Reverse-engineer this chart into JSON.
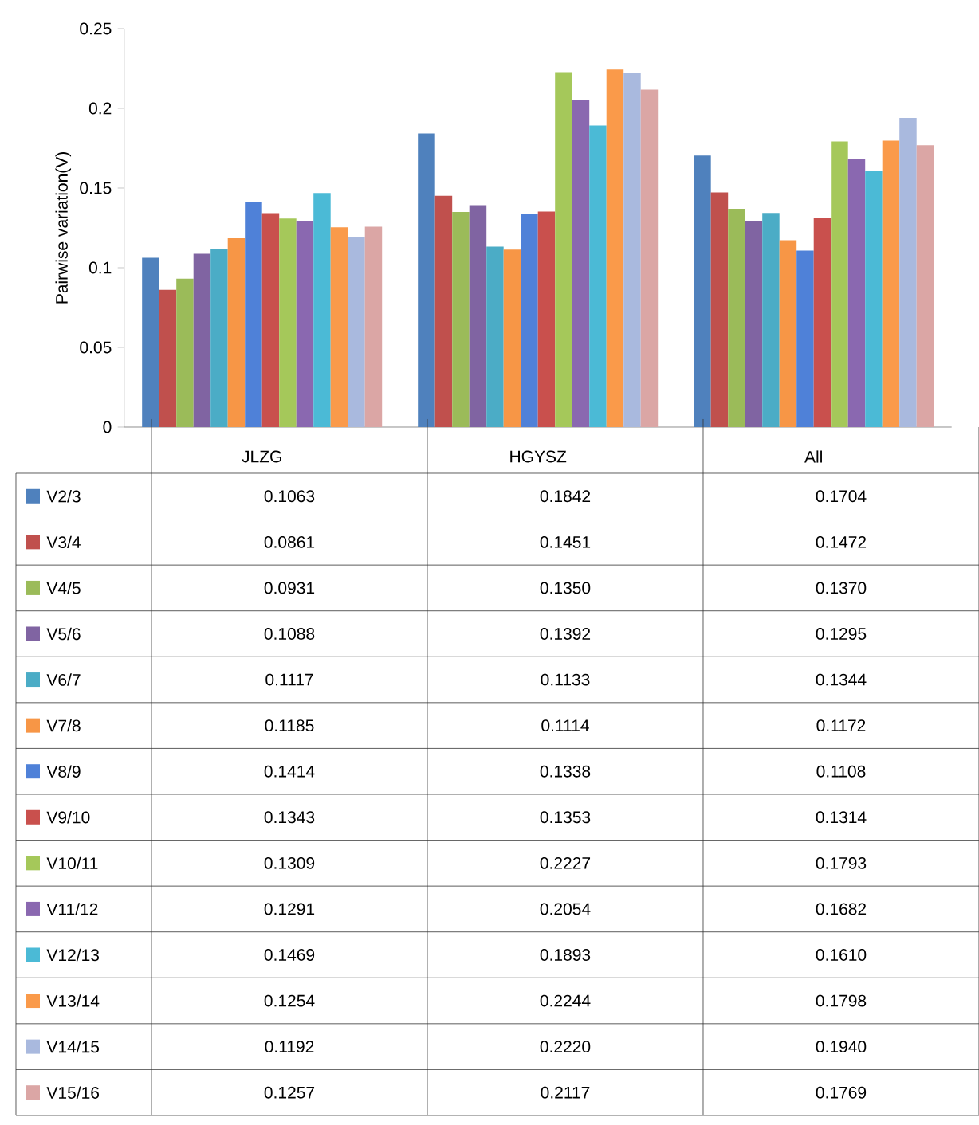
{
  "chart_data": {
    "type": "bar",
    "ylabel": "Pairwise variation(V)",
    "categories": [
      "JLZG",
      "HGYSZ",
      "All"
    ],
    "ylim": [
      0,
      0.25
    ],
    "yticks": [
      0,
      0.05,
      {
        "value": 0.1,
        "label": "0.1"
      },
      0.15,
      {
        "value": 0.2,
        "label": "0.2"
      },
      0.25
    ],
    "legend": "bottom",
    "series": [
      {
        "name": "V2/3",
        "color": "#4f81bd",
        "values": [
          0.1063,
          0.1842,
          0.1704
        ],
        "value_labels": [
          "0.1063",
          "0.1842",
          "0.1704"
        ]
      },
      {
        "name": "V3/4",
        "color": "#c0504d",
        "values": [
          0.0861,
          0.1451,
          0.1472
        ],
        "value_labels": [
          "0.0861",
          "0.1451",
          "0.1472"
        ]
      },
      {
        "name": "V4/5",
        "color": "#9bbb59",
        "values": [
          0.0931,
          0.135,
          0.137
        ],
        "value_labels": [
          "0.0931",
          "0.1350",
          "0.1370"
        ]
      },
      {
        "name": "V5/6",
        "color": "#8064a2",
        "values": [
          0.1088,
          0.1392,
          0.1295
        ],
        "value_labels": [
          "0.1088",
          "0.1392",
          "0.1295"
        ]
      },
      {
        "name": "V6/7",
        "color": "#4bacc6",
        "values": [
          0.1117,
          0.1133,
          0.1344
        ],
        "value_labels": [
          "0.1117",
          "0.1133",
          "0.1344"
        ]
      },
      {
        "name": "V7/8",
        "color": "#f79646",
        "values": [
          0.1185,
          0.1114,
          0.1172
        ],
        "value_labels": [
          "0.1185",
          "0.1114",
          "0.1172"
        ]
      },
      {
        "name": "V8/9",
        "color": "#4f81d8",
        "values": [
          0.1414,
          0.1338,
          0.1108
        ],
        "value_labels": [
          "0.1414",
          "0.1338",
          "0.1108"
        ]
      },
      {
        "name": "V9/10",
        "color": "#c9504d",
        "values": [
          0.1343,
          0.1353,
          0.1314
        ],
        "value_labels": [
          "0.1343",
          "0.1353",
          "0.1314"
        ]
      },
      {
        "name": "V10/11",
        "color": "#a5c85a",
        "values": [
          0.1309,
          0.2227,
          0.1793
        ],
        "value_labels": [
          "0.1309",
          "0.2227",
          "0.1793"
        ]
      },
      {
        "name": "V11/12",
        "color": "#8a68b0",
        "values": [
          0.1291,
          0.2054,
          0.1682
        ],
        "value_labels": [
          "0.1291",
          "0.2054",
          "0.1682"
        ]
      },
      {
        "name": "V12/13",
        "color": "#4bbad6",
        "values": [
          0.1469,
          0.1893,
          0.161
        ],
        "value_labels": [
          "0.1469",
          "0.1893",
          "0.1610"
        ]
      },
      {
        "name": "V13/14",
        "color": "#fa9a4a",
        "values": [
          0.1254,
          0.2244,
          0.1798
        ],
        "value_labels": [
          "0.1254",
          "0.2244",
          "0.1798"
        ]
      },
      {
        "name": "V14/15",
        "color": "#a9b9de",
        "values": [
          0.1192,
          0.222,
          0.194
        ],
        "value_labels": [
          "0.1192",
          "0.2220",
          "0.1940"
        ]
      },
      {
        "name": "V15/16",
        "color": "#dba6a5",
        "values": [
          0.1257,
          0.2117,
          0.1769
        ],
        "value_labels": [
          "0.1257",
          "0.2117",
          "0.1769"
        ]
      }
    ]
  }
}
